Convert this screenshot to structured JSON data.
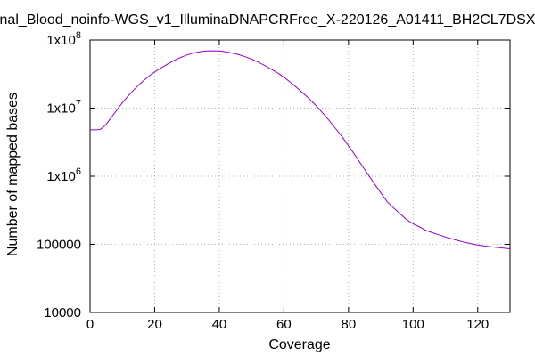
{
  "chart_data": {
    "type": "line",
    "title": "nal_Blood_noinfo-WGS_v1_IlluminaDNAPCRFree_X-220126_A01411_BH2CL7DSX",
    "xlabel": "Coverage",
    "ylabel": "Number of mapped bases",
    "xlim": [
      0,
      130
    ],
    "ylim": [
      10000,
      100000000
    ],
    "yscale": "log",
    "grid": true,
    "legend": "none",
    "x_ticks": [
      0,
      20,
      40,
      60,
      80,
      100,
      120
    ],
    "x_tick_labels": [
      "0",
      "20",
      "40",
      "60",
      "80",
      "100",
      "120"
    ],
    "y_ticks": [
      {
        "value": 10000,
        "base": "10000",
        "exp": ""
      },
      {
        "value": 100000,
        "base": "100000",
        "exp": ""
      },
      {
        "value": 1000000,
        "base": "1x10",
        "exp": "6"
      },
      {
        "value": 10000000,
        "base": "1x10",
        "exp": "7"
      },
      {
        "value": 100000000,
        "base": "1x10",
        "exp": "8"
      }
    ],
    "series": [
      {
        "color": "#9400d3",
        "x": [
          0,
          1,
          2,
          3,
          4,
          5,
          6,
          8,
          10,
          12,
          14,
          16,
          18,
          20,
          22,
          24,
          26,
          28,
          30,
          32,
          34,
          36,
          38,
          40,
          42,
          44,
          46,
          48,
          50,
          52,
          54,
          56,
          58,
          60,
          62,
          64,
          66,
          68,
          70,
          72,
          74,
          76,
          78,
          80,
          82,
          84,
          86,
          88,
          90,
          92,
          94,
          96,
          98,
          100,
          102,
          104,
          106,
          108,
          110,
          112,
          114,
          116,
          118,
          120,
          122,
          124,
          126,
          128,
          130
        ],
        "values": [
          4800000,
          4800000,
          4800000,
          4850000,
          5200000,
          5800000,
          6700000,
          9000000,
          12000000,
          15500000,
          19500000,
          24000000,
          29000000,
          34000000,
          39000000,
          44500000,
          50000000,
          55500000,
          60500000,
          64500000,
          67500000,
          69000000,
          69500000,
          69000000,
          67000000,
          64500000,
          61000000,
          57000000,
          52500000,
          47500000,
          42500000,
          37500000,
          33000000,
          28500000,
          24000000,
          20000000,
          16500000,
          13500000,
          10800000,
          8500000,
          6600000,
          5000000,
          3800000,
          2800000,
          2050000,
          1480000,
          1070000,
          780000,
          570000,
          420000,
          340000,
          280000,
          230000,
          200000,
          180000,
          160000,
          148000,
          138000,
          128000,
          120000,
          113000,
          107000,
          102000,
          98000,
          95000,
          92000,
          90000,
          88000,
          86000
        ]
      }
    ]
  }
}
